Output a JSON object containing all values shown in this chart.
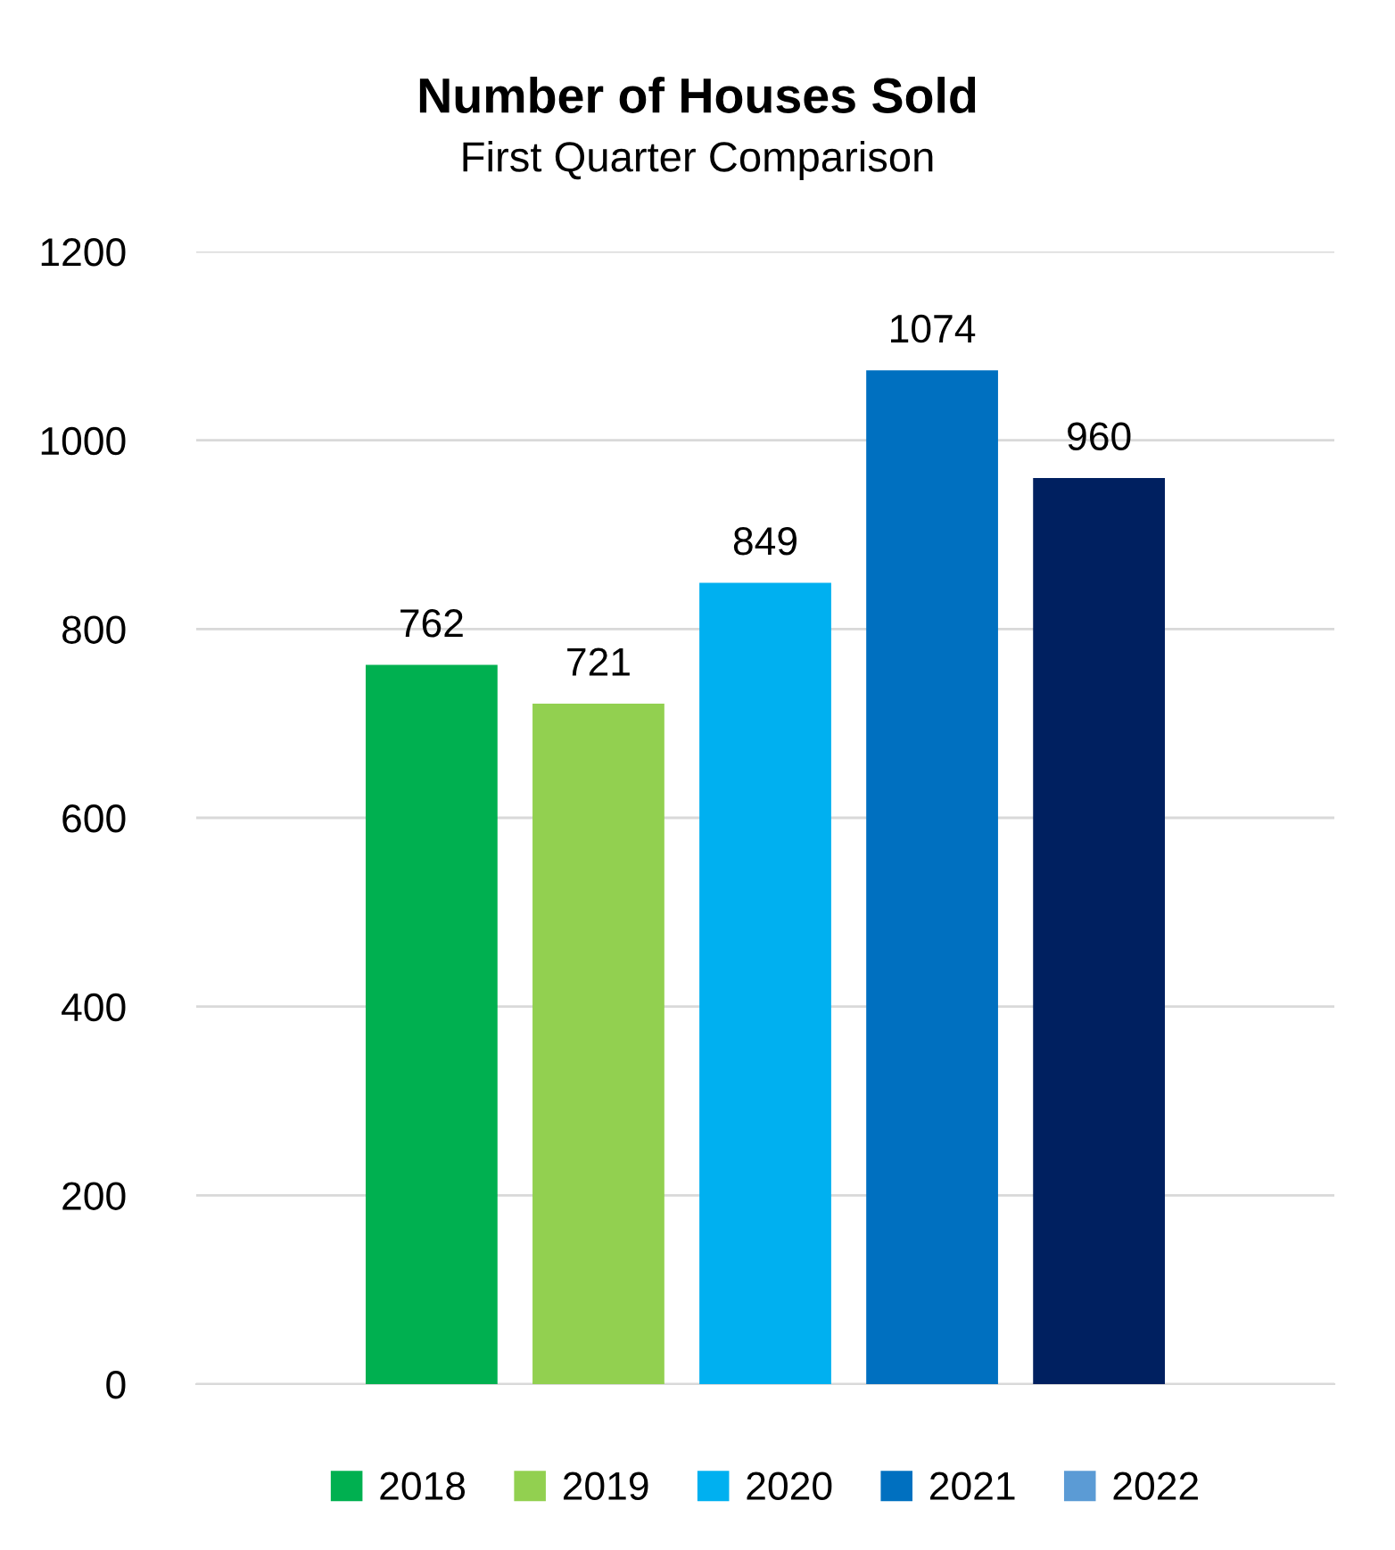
{
  "chart_data": {
    "type": "bar",
    "title": "Number of Houses Sold",
    "subtitle": "First Quarter Comparison",
    "categories": [
      null
    ],
    "series": [
      {
        "name": "2018",
        "color": "#00b050",
        "values": [
          762
        ]
      },
      {
        "name": "2019",
        "color": "#92d050",
        "values": [
          721
        ]
      },
      {
        "name": "2020",
        "color": "#00b0f0",
        "values": [
          849
        ]
      },
      {
        "name": "2021",
        "color": "#0070c0",
        "values": [
          1074
        ]
      },
      {
        "name": "2022",
        "color": "#5b9bd5",
        "colors": [
          "#002060"
        ],
        "values": [
          960
        ]
      }
    ],
    "ylim": [
      0,
      1200
    ],
    "yticks": [
      0,
      200,
      400,
      600,
      800,
      1000,
      1200
    ],
    "grid": "y",
    "legend": "bottom",
    "data_labels": true
  }
}
